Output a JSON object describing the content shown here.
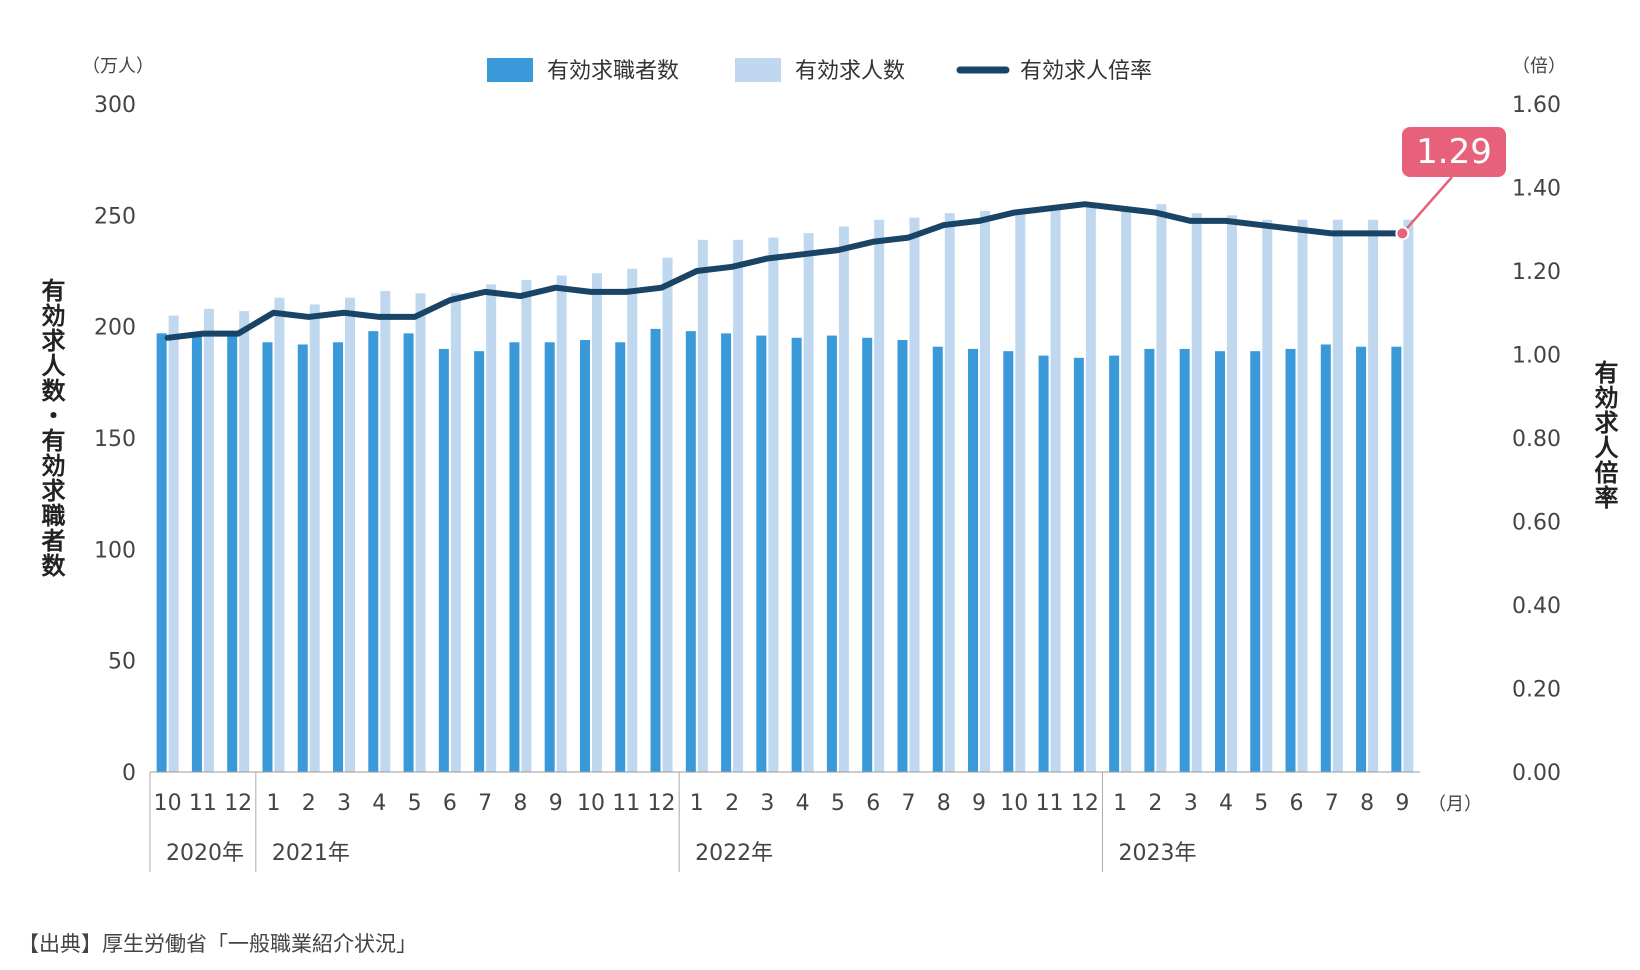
{
  "chart_data": {
    "type": "bar+line",
    "legend": {
      "placement": "top-center",
      "items": [
        {
          "label": "有効求職者数",
          "kind": "bar",
          "color": "#3a9ad9"
        },
        {
          "label": "有効求人数",
          "kind": "bar",
          "color": "#bfd8f0"
        },
        {
          "label": "有効求人倍率",
          "kind": "line",
          "color": "#1a4466"
        }
      ]
    },
    "left_axis": {
      "label": "有効求人数・有効求職者数",
      "unit": "（万人）",
      "range": [
        0,
        300
      ],
      "ticks": [
        0,
        50,
        100,
        150,
        200,
        250,
        300
      ]
    },
    "right_axis": {
      "label": "有効求人倍率",
      "unit": "（倍）",
      "range": [
        0,
        1.6
      ],
      "ticks": [
        "0.00",
        "0.20",
        "0.40",
        "0.60",
        "0.80",
        "1.00",
        "1.20",
        "1.40",
        "1.60"
      ]
    },
    "x_unit": "（月）",
    "months": [
      "10",
      "11",
      "12",
      "1",
      "2",
      "3",
      "4",
      "5",
      "6",
      "7",
      "8",
      "9",
      "10",
      "11",
      "12",
      "1",
      "2",
      "3",
      "4",
      "5",
      "6",
      "7",
      "8",
      "9",
      "10",
      "11",
      "12",
      "1",
      "2",
      "3",
      "4",
      "5",
      "6",
      "7",
      "8",
      "9"
    ],
    "years": [
      {
        "label": "2020年",
        "start": 0,
        "count": 3
      },
      {
        "label": "2021年",
        "start": 3,
        "count": 12
      },
      {
        "label": "2022年",
        "start": 15,
        "count": 12
      },
      {
        "label": "2023年",
        "start": 27,
        "count": 9
      }
    ],
    "series": [
      {
        "name": "有効求職者数",
        "type": "bar",
        "color": "#3a9ad9",
        "values": [
          197,
          197,
          197,
          193,
          192,
          193,
          198,
          197,
          190,
          189,
          193,
          193,
          194,
          193,
          199,
          198,
          197,
          196,
          195,
          196,
          195,
          194,
          191,
          190,
          189,
          187,
          186,
          187,
          190,
          190,
          189,
          189,
          190,
          192,
          191,
          191
        ]
      },
      {
        "name": "有効求人数",
        "type": "bar",
        "color": "#bfd8f0",
        "values": [
          205,
          208,
          207,
          213,
          210,
          213,
          216,
          215,
          215,
          219,
          221,
          223,
          224,
          226,
          231,
          239,
          239,
          240,
          242,
          245,
          248,
          249,
          251,
          252,
          251,
          253,
          254,
          253,
          255,
          251,
          250,
          248,
          248,
          248,
          248,
          248
        ]
      },
      {
        "name": "有効求人倍率",
        "type": "line",
        "color": "#1a4466",
        "values": [
          1.04,
          1.05,
          1.05,
          1.1,
          1.09,
          1.1,
          1.09,
          1.09,
          1.13,
          1.15,
          1.14,
          1.16,
          1.15,
          1.15,
          1.16,
          1.2,
          1.21,
          1.23,
          1.24,
          1.25,
          1.27,
          1.28,
          1.31,
          1.32,
          1.34,
          1.35,
          1.36,
          1.35,
          1.34,
          1.32,
          1.32,
          1.31,
          1.3,
          1.29,
          1.29,
          1.29
        ]
      }
    ],
    "annotation": {
      "text": "1.29",
      "index": 35,
      "color": "#e8617a"
    },
    "source": "【出典】厚生労働省「一般職業紹介状況」"
  }
}
